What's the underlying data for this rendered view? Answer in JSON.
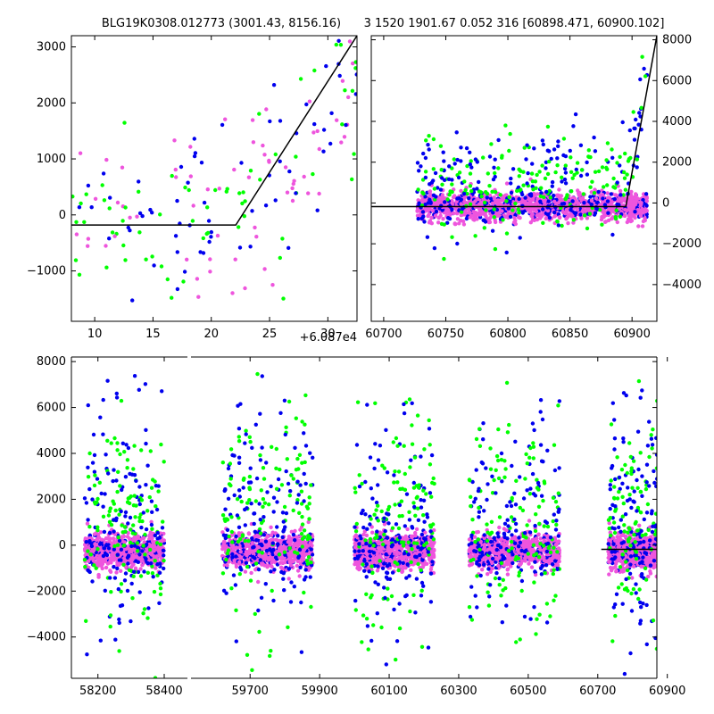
{
  "title_left": "BLG19K0308.012773 (3001.43, 8156.16)",
  "title_right": "3 1520 1901.67 0.052 316 [60898.471, 60900.102]",
  "offset_label": "+6.087e4",
  "colors": {
    "green": "#00ff00",
    "blue": "#0000ee",
    "pink": "#ee55dd",
    "model": "#000000"
  },
  "chart_data": [
    {
      "name": "top-left",
      "type": "scatter",
      "xlim": [
        8,
        32.5
      ],
      "ylim": [
        -1900,
        3200
      ],
      "xticks": [
        10,
        15,
        20,
        25,
        30
      ],
      "yticks": [
        -1000,
        0,
        1000,
        2000,
        3000
      ],
      "model": [
        [
          8,
          -180
        ],
        [
          22.1,
          -180
        ],
        [
          32.5,
          3200
        ]
      ],
      "seed": 7
    },
    {
      "name": "top-right",
      "type": "scatter",
      "xlim": [
        60690,
        60920
      ],
      "ylim": [
        -5800,
        8200
      ],
      "xticks": [
        60700,
        60750,
        60800,
        60850,
        60900
      ],
      "yticks": [
        -4000,
        -2000,
        0,
        2000,
        4000,
        6000,
        8000
      ],
      "model": [
        [
          60690,
          -180
        ],
        [
          60895,
          -180
        ],
        [
          60920,
          8200
        ]
      ],
      "seed": 11
    },
    {
      "name": "bottom",
      "type": "scatter",
      "ylim": [
        -5800,
        8200
      ],
      "yticks": [
        -4000,
        -2000,
        0,
        2000,
        4000,
        6000,
        8000
      ],
      "segments": [
        {
          "xlim": [
            58120,
            58470
          ],
          "xticks": [
            58200,
            58400
          ],
          "clusters": [
            [
              58160,
              58400
            ]
          ]
        },
        {
          "xlim": [
            59530,
            60870
          ],
          "xticks": [
            59700,
            59900,
            60100,
            60300,
            60500,
            60700,
            60900
          ],
          "clusters": [
            [
              59620,
              59880
            ],
            [
              60000,
              60230
            ],
            [
              60330,
              60590
            ],
            [
              60730,
              60900
            ]
          ]
        }
      ],
      "model": [
        [
          60710,
          -180
        ],
        [
          60895,
          -180
        ],
        [
          60910,
          8200
        ]
      ],
      "seed": 3
    }
  ]
}
